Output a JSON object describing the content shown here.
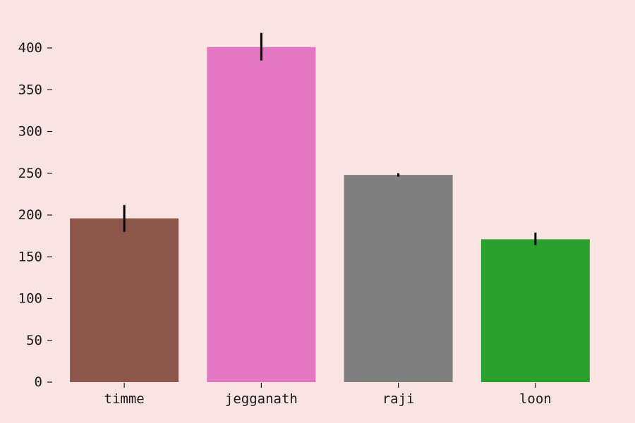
{
  "chart_data": {
    "type": "bar",
    "title": "",
    "xlabel": "",
    "ylabel": "",
    "categories": [
      "timme",
      "jegganath",
      "raji",
      "loon"
    ],
    "values": [
      196,
      401,
      248,
      171
    ],
    "error_low": [
      180,
      385,
      246,
      164
    ],
    "error_high": [
      212,
      418,
      250,
      179
    ],
    "colors": [
      "#8c564b",
      "#e377c2",
      "#7f7f7f",
      "#2ca02c"
    ],
    "ylim": [
      0,
      420
    ],
    "yticks": [
      0,
      50,
      100,
      150,
      200,
      250,
      300,
      350,
      400
    ],
    "grid": false,
    "background": "#fae3e3",
    "error_color": "#000000"
  }
}
